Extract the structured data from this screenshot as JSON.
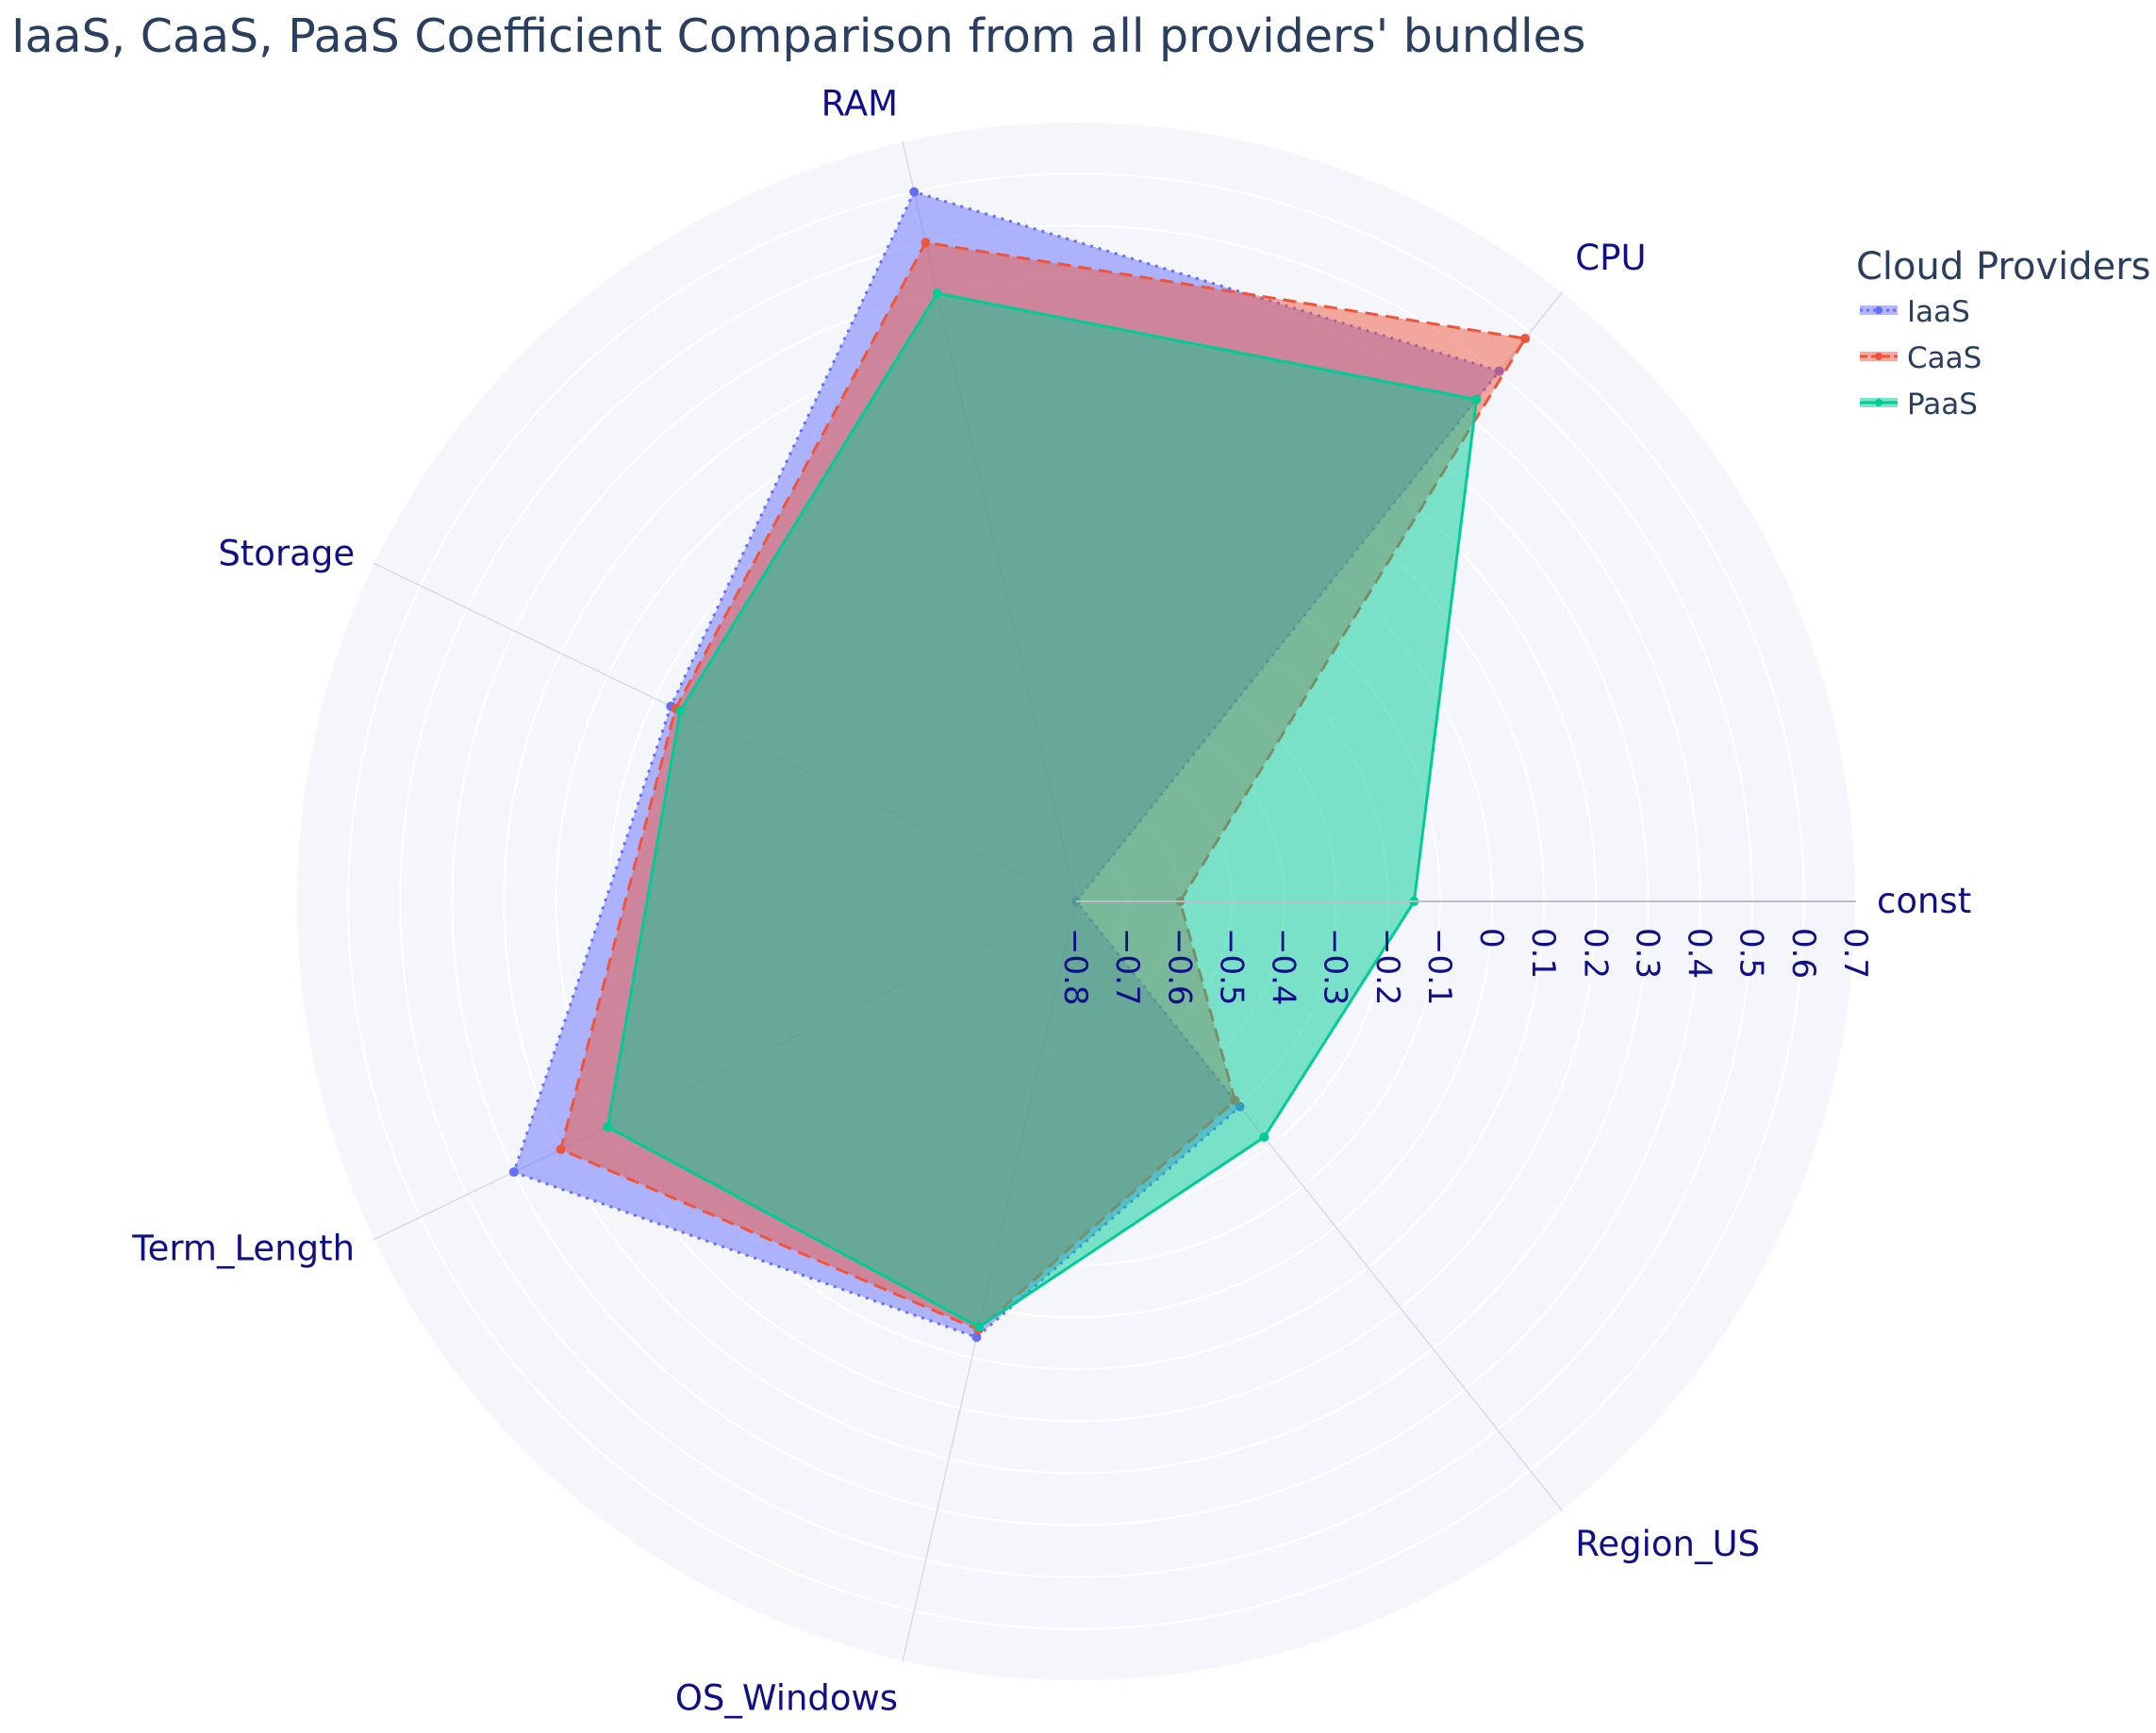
{
  "chart_data": {
    "type": "radar",
    "title": "IaaS, CaaS, PaaS Coefficient Comparison from all providers' bundles",
    "categories": [
      "const",
      "CPU",
      "RAM",
      "Storage",
      "Term_Length",
      "OS_Windows",
      "Region_US"
    ],
    "radial_range": [
      -0.8,
      0.7
    ],
    "radial_ticks": [
      "−0.8",
      "−0.7",
      "−0.6",
      "−0.5",
      "−0.4",
      "−0.3",
      "−0.2",
      "−0.1",
      "0",
      "0.1",
      "0.2",
      "0.3",
      "0.4",
      "0.5",
      "0.6",
      "0.7"
    ],
    "radial_tick_values": [
      -0.8,
      -0.7,
      -0.6,
      -0.5,
      -0.4,
      -0.3,
      -0.2,
      -0.1,
      0,
      0.1,
      0.2,
      0.3,
      0.4,
      0.5,
      0.6,
      0.7
    ],
    "legend_title": "Cloud Providers",
    "legend_position": "top-right",
    "series": [
      {
        "name": "IaaS",
        "color": "#636efa",
        "line_style": "dotted",
        "values": [
          -0.8,
          0.505,
          0.6,
          0.065,
          0.4,
          0.06,
          -0.295
        ]
      },
      {
        "name": "CaaS",
        "color": "#ef553b",
        "line_style": "dashed",
        "values": [
          -0.6,
          0.585,
          0.5,
          0.055,
          0.3,
          0.045,
          -0.31
        ]
      },
      {
        "name": "PaaS",
        "color": "#00cc96",
        "line_style": "solid",
        "values": [
          -0.15,
          0.435,
          0.4,
          0.045,
          0.2,
          0.04,
          -0.22
        ]
      }
    ]
  },
  "colors": {
    "background_disc": "#f5f6fc",
    "grid": "#e5e7f2",
    "axis_text": "#0f0f87",
    "title_text": "#2a3f5f"
  }
}
